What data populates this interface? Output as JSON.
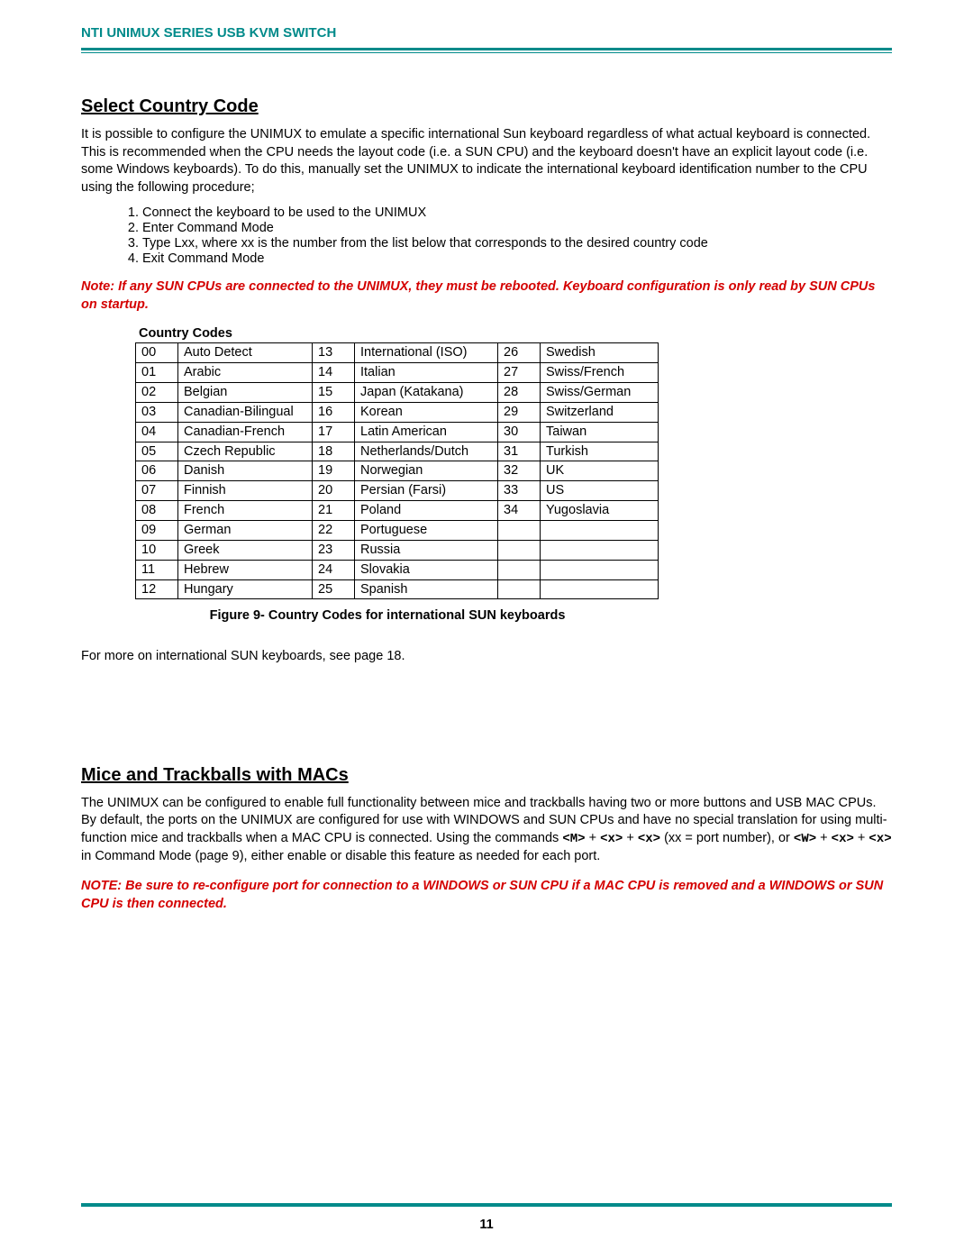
{
  "header": "NTI UNIMUX SERIES USB KVM SWITCH",
  "section1": {
    "title": "Select Country Code",
    "para": "It is possible to configure the UNIMUX to emulate a specific international Sun keyboard regardless of what actual keyboard is connected.  This is recommended when the CPU needs the layout code (i.e. a SUN CPU) and the keyboard doesn't have an explicit layout code (i.e. some Windows keyboards).   To do this, manually set the UNIMUX to indicate the international keyboard identification number to the CPU using the following procedure;",
    "steps": [
      "Connect the keyboard to be used to the UNIMUX",
      "Enter Command Mode",
      "Type Lxx, where xx is the number from the list below that corresponds to the desired country code",
      "Exit Command Mode"
    ],
    "note": "Note:  If any SUN CPUs are connected to the UNIMUX, they must be rebooted.  Keyboard configuration is only read by SUN CPUs on startup.",
    "table_title": "Country Codes",
    "table": {
      "rows": [
        [
          "00",
          "Auto Detect",
          "13",
          "International (ISO)",
          "26",
          "Swedish"
        ],
        [
          "01",
          "Arabic",
          "14",
          "Italian",
          "27",
          "Swiss/French"
        ],
        [
          "02",
          "Belgian",
          "15",
          "Japan (Katakana)",
          "28",
          "Swiss/German"
        ],
        [
          "03",
          "Canadian-Bilingual",
          "16",
          "Korean",
          "29",
          "Switzerland"
        ],
        [
          "04",
          "Canadian-French",
          "17",
          "Latin American",
          "30",
          "Taiwan"
        ],
        [
          "05",
          "Czech Republic",
          "18",
          "Netherlands/Dutch",
          "31",
          "Turkish"
        ],
        [
          "06",
          "Danish",
          "19",
          "Norwegian",
          "32",
          "UK"
        ],
        [
          "07",
          "Finnish",
          "20",
          "Persian (Farsi)",
          "33",
          "US"
        ],
        [
          "08",
          "French",
          "21",
          "Poland",
          "34",
          "Yugoslavia"
        ],
        [
          "09",
          "German",
          "22",
          "Portuguese",
          "",
          ""
        ],
        [
          "10",
          "Greek",
          "23",
          "Russia",
          "",
          ""
        ],
        [
          "11",
          "Hebrew",
          "24",
          "Slovakia",
          "",
          ""
        ],
        [
          "12",
          "Hungary",
          "25",
          "Spanish",
          "",
          ""
        ]
      ]
    },
    "figure_caption": "Figure 9- Country Codes for international SUN keyboards",
    "after": "For more on international SUN keyboards, see page 18."
  },
  "section2": {
    "title": "Mice and Trackballs with MACs",
    "para_parts": {
      "p1": "The UNIMUX can be configured to enable full functionality between mice and trackballs having two or more buttons and USB MAC CPUs.   By default,  the ports on the UNIMUX are configured for use with WINDOWS and SUN CPUs and have no special translation for using multi-function mice and trackballs when a MAC CPU is connected.   Using the commands ",
      "m1": "<M>",
      "p2": " + ",
      "m2": "<x>",
      "p3": " + ",
      "m3": "<x>",
      "p4": " (xx = port number), or ",
      "m4": "<W>",
      "p5": " + ",
      "m5": "<x>",
      "p6": " + ",
      "m6": "<x>",
      "p7": " in Command Mode  (page 9), either enable or disable this feature as needed for each port."
    },
    "note": "NOTE:  Be sure to re-configure port for connection to a WINDOWS or SUN CPU if a MAC CPU is removed and a WINDOWS or SUN CPU is then connected."
  },
  "page_number": "11",
  "colors": {
    "teal": "#008a8a",
    "red": "#d40000"
  }
}
